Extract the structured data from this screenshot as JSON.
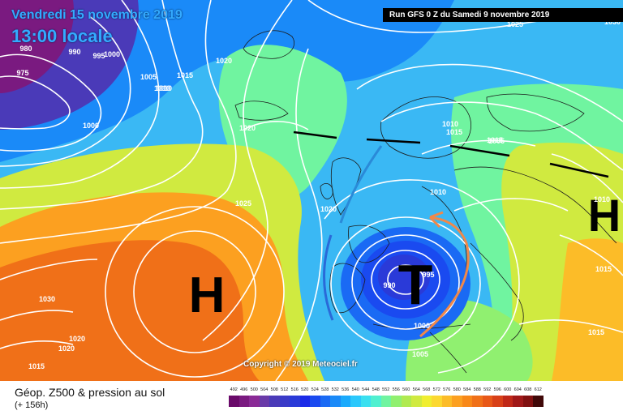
{
  "header": {
    "valid_date": "Vendredi 15 novembre 2019",
    "valid_time": "13:00 locale",
    "run": "Run GFS 0 Z du Samedi 9 novembre 2019"
  },
  "copyright": "Copyright © 2019 Meteociel.fr",
  "legend": {
    "title": "Géop. Z500 & pression au sol",
    "subtitle": "(+ 156h)",
    "levels": [
      "492",
      "496",
      "500",
      "504",
      "508",
      "512",
      "516",
      "520",
      "524",
      "528",
      "532",
      "536",
      "540",
      "544",
      "548",
      "552",
      "556",
      "560",
      "564",
      "568",
      "572",
      "576",
      "580",
      "584",
      "588",
      "592",
      "596",
      "600",
      "604",
      "608",
      "612"
    ],
    "colors": [
      "#6a0a6a",
      "#7a1a80",
      "#8a2a96",
      "#6a3aa8",
      "#4a3ab8",
      "#3a3ac8",
      "#2a3ad8",
      "#1a2ae8",
      "#1a4af0",
      "#1a6af4",
      "#1a8af8",
      "#1aaafc",
      "#2ac8fc",
      "#3ae0f0",
      "#50f0d0",
      "#70f4a0",
      "#90f070",
      "#b0ea50",
      "#d0ea40",
      "#f0ee30",
      "#fcd830",
      "#fcbc28",
      "#fca020",
      "#f88818",
      "#f07018",
      "#e85818",
      "#d84018",
      "#c02818",
      "#a01818",
      "#801010",
      "#400808"
    ]
  },
  "systems": [
    {
      "letter": "H",
      "color": "#000000"
    },
    {
      "letter": "T",
      "color": "#000000"
    },
    {
      "letter": "H",
      "color": "#000000"
    }
  ],
  "isobar_labels": [
    "980",
    "975",
    "990",
    "995",
    "1000",
    "1000",
    "1005",
    "1010",
    "1015",
    "1020",
    "1025",
    "1030",
    "1025",
    "1020",
    "1020",
    "1020",
    "1020",
    "1015",
    "1015",
    "1010",
    "1005",
    "1010",
    "1025",
    "1030",
    "1015",
    "1015",
    "1020",
    "990",
    "995",
    "1000",
    "1005",
    "1010",
    "1010",
    "1015"
  ]
}
